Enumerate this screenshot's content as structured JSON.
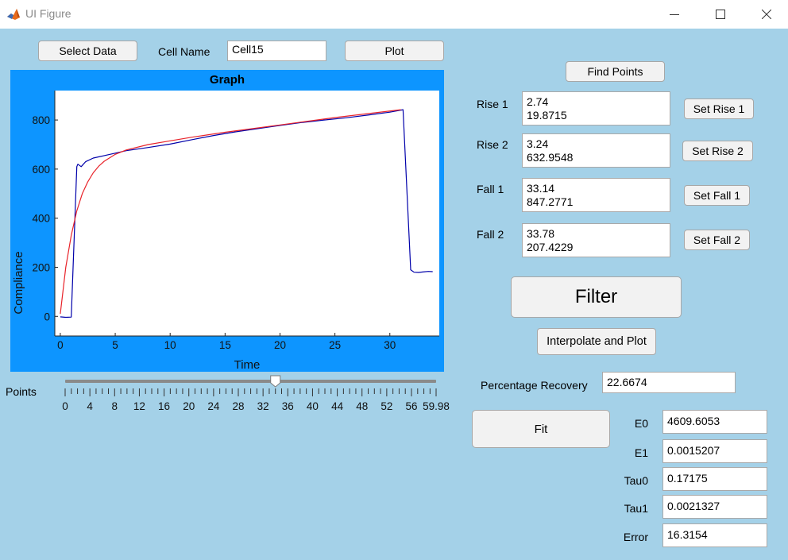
{
  "window": {
    "title": "UI Figure"
  },
  "controls": {
    "select_data_label": "Select Data",
    "cell_name_label": "Cell Name",
    "cell_name_value": "Cell15",
    "plot_label": "Plot",
    "find_points_label": "Find Points",
    "filter_label": "Filter",
    "interpolate_label": "Interpolate and Plot",
    "fit_label": "Fit"
  },
  "points_group": [
    {
      "label": "Rise 1",
      "value": "2.74\n19.8715",
      "button": "Set Rise 1"
    },
    {
      "label": "Rise 2",
      "value": "3.24\n632.9548",
      "button": "Set Rise 2"
    },
    {
      "label": "Fall 1",
      "value": "33.14\n847.2771",
      "button": "Set Fall 1"
    },
    {
      "label": "Fall 2",
      "value": "33.78\n207.4229",
      "button": "Set Fall 2"
    }
  ],
  "recovery": {
    "label": "Percentage Recovery",
    "value": "22.6674"
  },
  "fit_results": [
    {
      "label": "E0",
      "value": "4609.6053"
    },
    {
      "label": "E1",
      "value": "0.0015207"
    },
    {
      "label": "Tau0",
      "value": "0.17175"
    },
    {
      "label": "Tau1",
      "value": "0.0021327"
    },
    {
      "label": "Error",
      "value": "16.3154"
    }
  ],
  "slider": {
    "label": "Points",
    "value": 34,
    "min": 0,
    "max": 59.98,
    "tick_labels": [
      "0",
      "4",
      "8",
      "12",
      "16",
      "20",
      "24",
      "28",
      "32",
      "36",
      "40",
      "44",
      "48",
      "52",
      "56",
      "59.98"
    ]
  },
  "chart_data": {
    "type": "line",
    "title": "Graph",
    "xlabel": "Time",
    "ylabel": "Compliance",
    "xlim": [
      -0.5,
      34.5
    ],
    "ylim": [
      -80,
      920
    ],
    "xticks": [
      "0",
      "5",
      "10",
      "15",
      "20",
      "25",
      "30"
    ],
    "yticks": [
      "0",
      "200",
      "400",
      "600",
      "800"
    ],
    "series": [
      {
        "color": "#0000aa",
        "x": [
          0,
          0.5,
          1.0,
          1.5,
          1.6,
          1.9,
          2.3,
          3,
          4,
          5,
          6,
          8,
          10,
          12,
          14,
          16,
          18,
          20,
          22,
          24,
          26,
          28,
          30,
          31.2,
          31.9,
          32.2,
          32.6,
          33,
          33.5,
          33.9
        ],
        "y": [
          -2,
          -4,
          -3,
          610,
          620,
          610,
          630,
          645,
          655,
          665,
          675,
          688,
          702,
          720,
          737,
          752,
          765,
          778,
          790,
          800,
          809,
          820,
          832,
          842,
          190,
          180,
          179,
          181,
          183,
          182
        ]
      },
      {
        "color": "#e8232a",
        "x": [
          0,
          0.5,
          1,
          1.5,
          2,
          2.5,
          3,
          3.5,
          4,
          5,
          6,
          8,
          10,
          12,
          15,
          20,
          25,
          31
        ],
        "y": [
          10,
          200,
          330,
          430,
          500,
          548,
          585,
          612,
          632,
          660,
          678,
          700,
          715,
          730,
          750,
          780,
          810,
          842
        ]
      }
    ]
  }
}
